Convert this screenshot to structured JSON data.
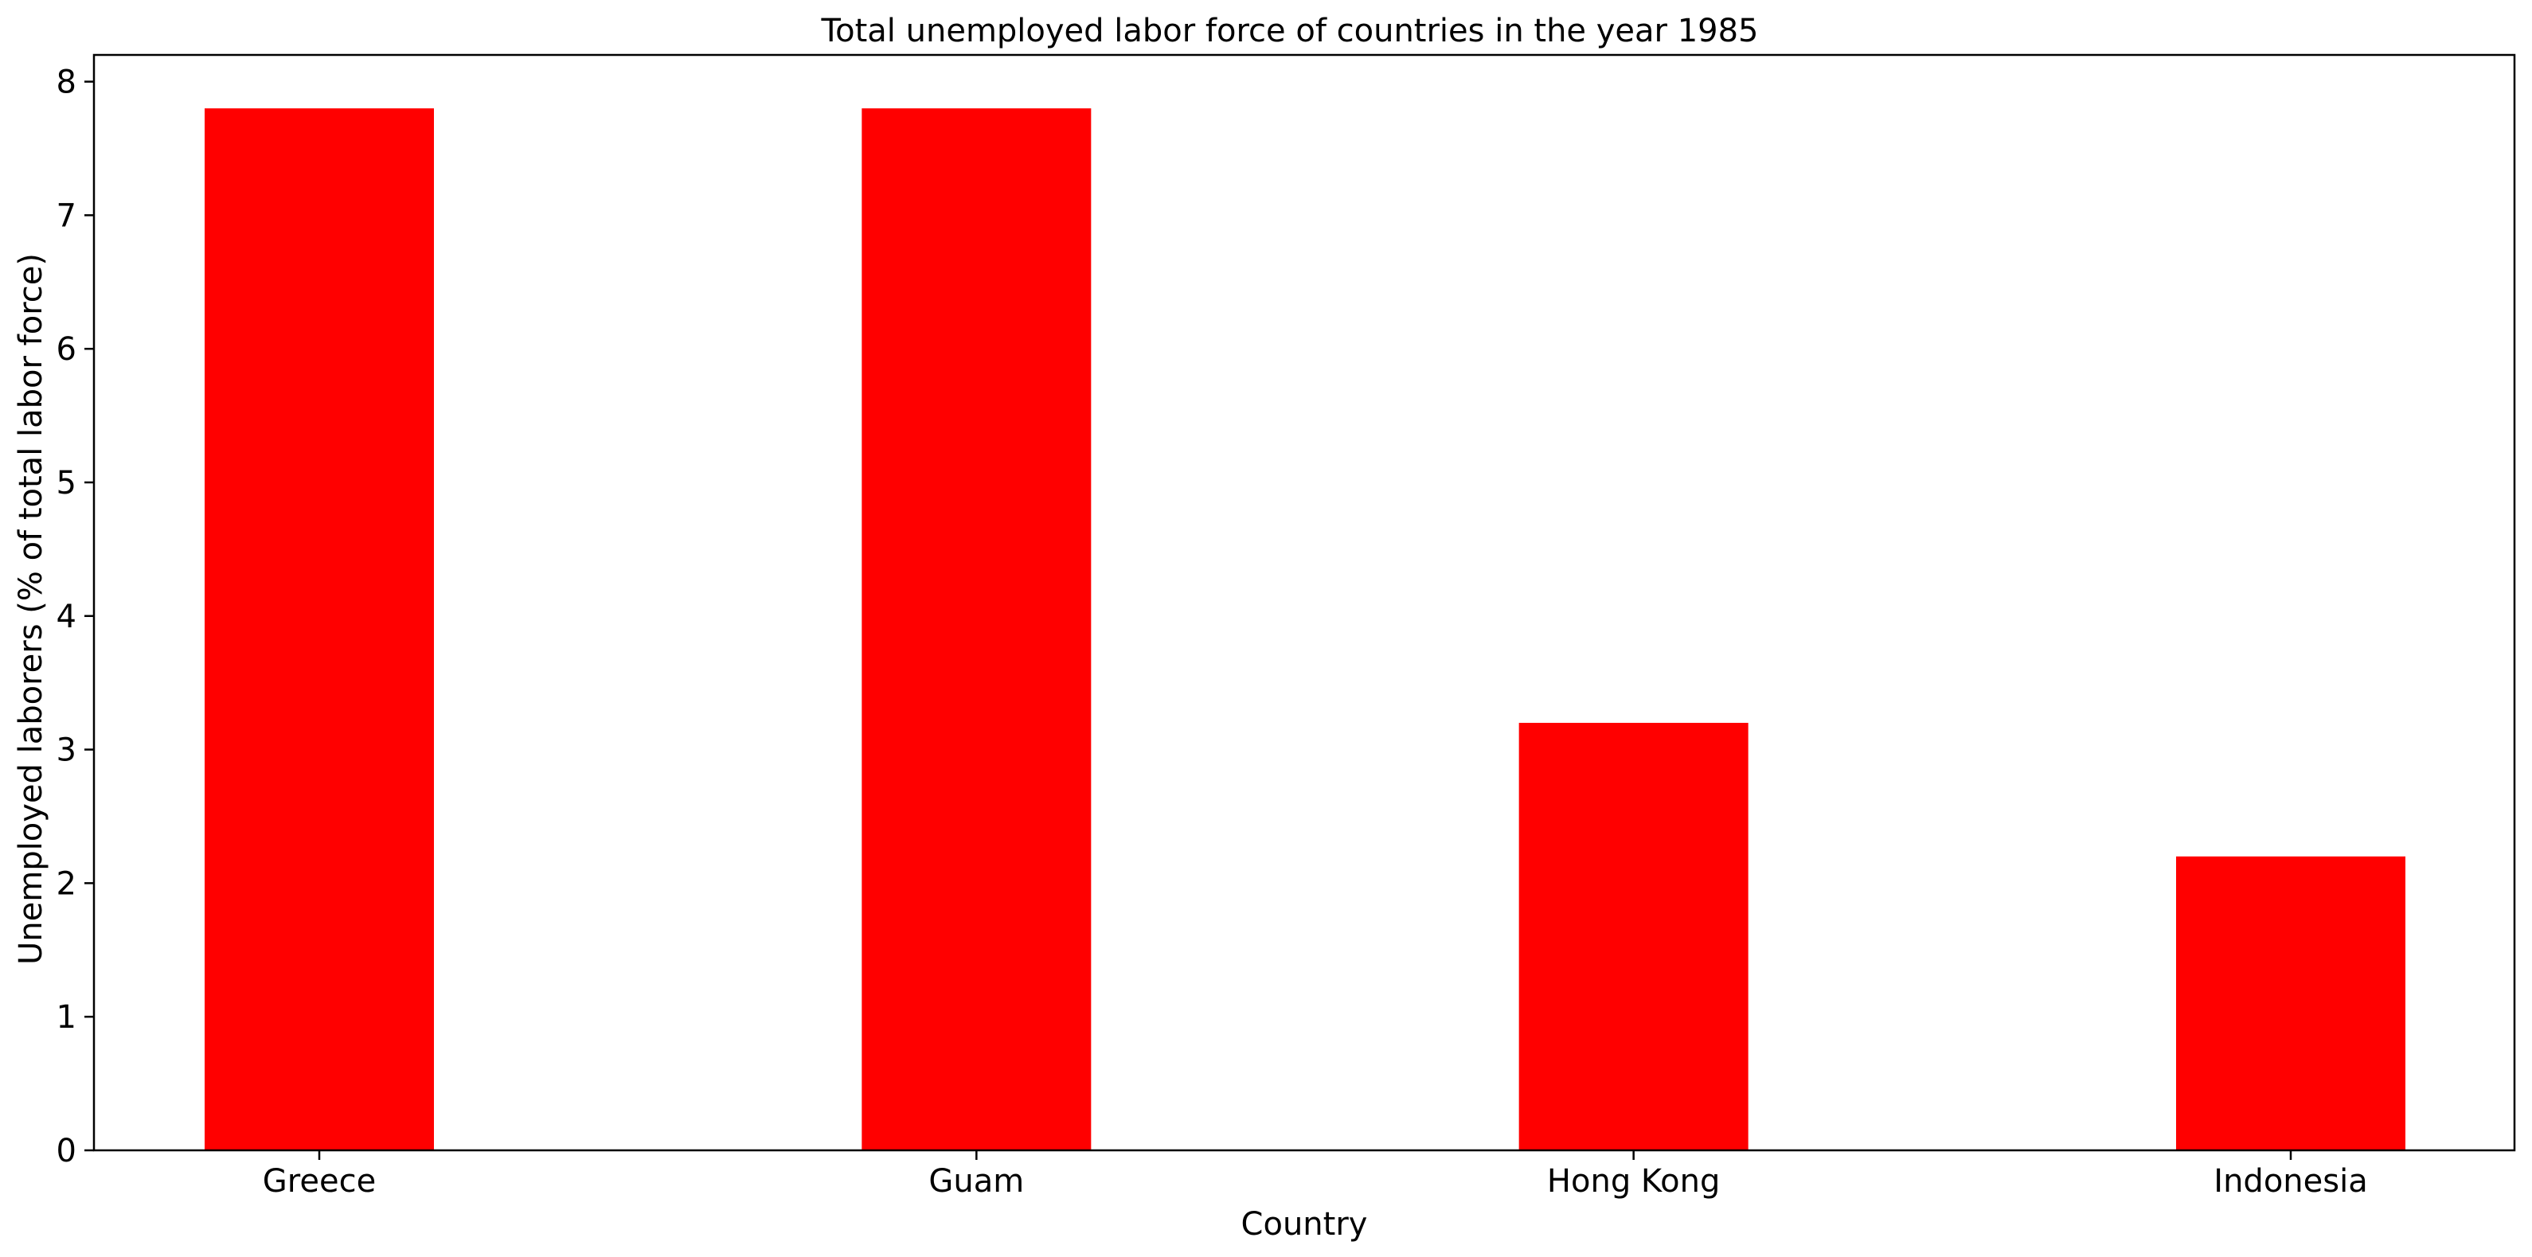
{
  "chart_data": {
    "type": "bar",
    "title": "Total unemployed labor force of countries in the year 1985",
    "xlabel": "Country",
    "ylabel": "Unemployed laborers (% of total labor force)",
    "categories": [
      "Greece",
      "Guam",
      "Hong Kong",
      "Indonesia"
    ],
    "values": [
      7.8,
      7.8,
      3.2,
      2.2
    ],
    "ylim": [
      0,
      8.2
    ],
    "yticks": [
      "0",
      "1",
      "2",
      "3",
      "4",
      "5",
      "6",
      "7",
      "8"
    ],
    "bar_color": "#ff0000",
    "grid": false,
    "legend": "none"
  }
}
